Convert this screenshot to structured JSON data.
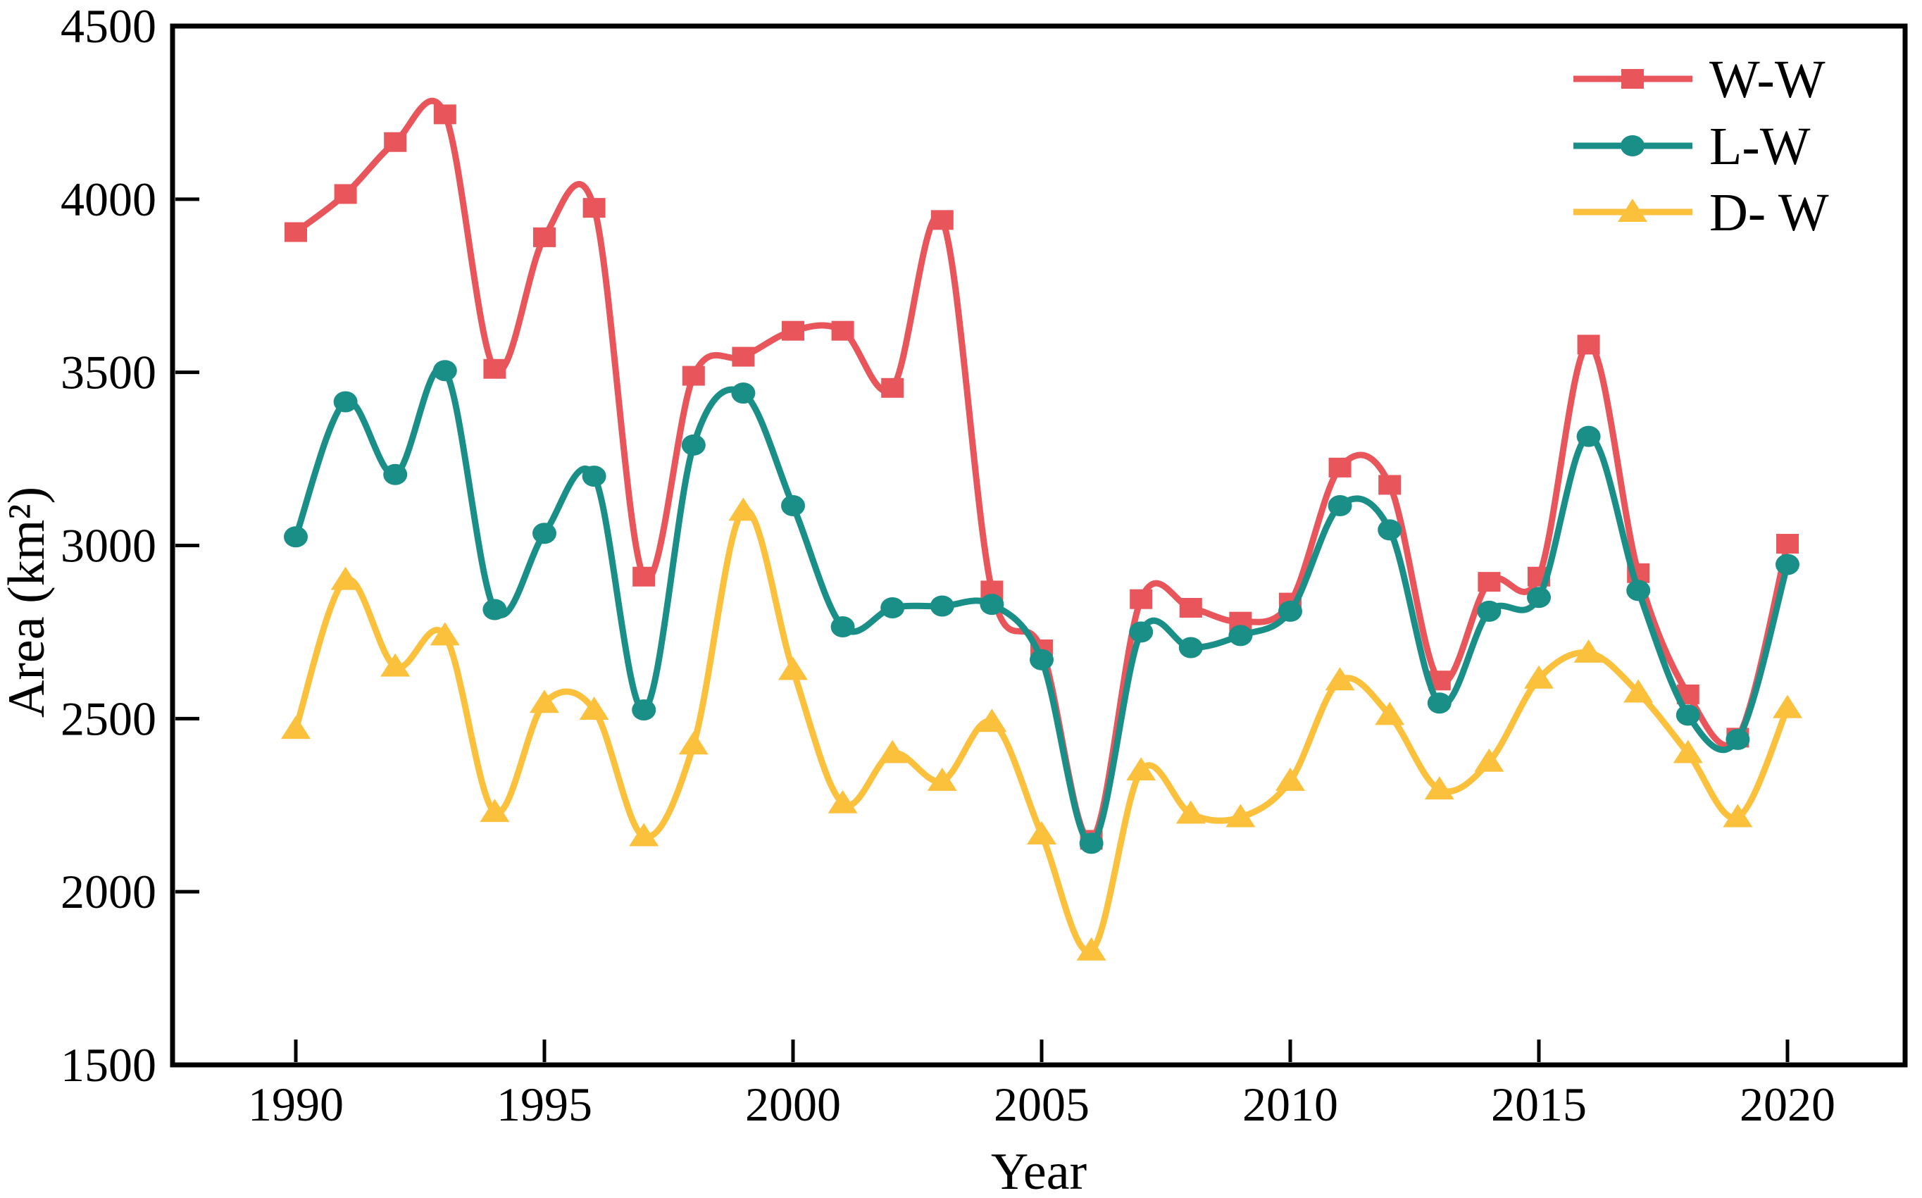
{
  "figure": {
    "background": "#ffffff"
  },
  "axes": {
    "x": {
      "label": "Year",
      "tick_years": [
        1990,
        1995,
        2000,
        2005,
        2010,
        2015,
        2020
      ],
      "tick_labels": [
        "1990",
        "1995",
        "2000",
        "2005",
        "2010",
        "2015",
        "2020"
      ]
    },
    "y": {
      "label": "Area（km²）",
      "tick_values": [
        1500,
        2000,
        2500,
        3000,
        3500,
        4000,
        4500
      ],
      "tick_labels": [
        "1500",
        "2000",
        "2500",
        "3000",
        "3500",
        "4000",
        "4500"
      ],
      "inner_tick_values": [
        2000,
        2500,
        3000,
        3500,
        4000
      ]
    }
  },
  "legend": {
    "items": [
      {
        "label": "W-W",
        "series": "W-W"
      },
      {
        "label": "L-W",
        "series": "L-W"
      },
      {
        "label": "D- W",
        "series": "D-W"
      }
    ]
  },
  "chart_data": {
    "type": "line",
    "curve": "smooth",
    "grid": false,
    "legend_position": "top-right",
    "title": "",
    "xlabel": "Year",
    "ylabel": "Area（km²）",
    "ylim": [
      1500,
      4500
    ],
    "xlim_years": [
      1987.5,
      2022.5
    ],
    "x": [
      1990,
      1991,
      1992,
      1993,
      1994,
      1995,
      1996,
      1997,
      1998,
      1999,
      2000,
      2001,
      2002,
      2003,
      2004,
      2005,
      2006,
      2007,
      2008,
      2009,
      2010,
      2011,
      2012,
      2013,
      2014,
      2015,
      2016,
      2017,
      2018,
      2019,
      2020
    ],
    "series": [
      {
        "name": "W-W",
        "marker": "square",
        "color": "#E8555A",
        "values": [
          3905,
          4015,
          4165,
          4245,
          3510,
          3890,
          3975,
          2910,
          3490,
          3545,
          3620,
          3620,
          3455,
          3940,
          2870,
          2700,
          2150,
          2845,
          2820,
          2780,
          2835,
          3225,
          3175,
          2610,
          2895,
          2910,
          3580,
          2920,
          2570,
          2445,
          3005
        ]
      },
      {
        "name": "L-W",
        "marker": "circle",
        "color": "#1A8F88",
        "values": [
          3025,
          3415,
          3205,
          3505,
          2815,
          3035,
          3200,
          2525,
          3290,
          3440,
          3115,
          2765,
          2820,
          2825,
          2830,
          2670,
          2140,
          2750,
          2705,
          2740,
          2810,
          3115,
          3045,
          2545,
          2810,
          2850,
          3315,
          2870,
          2510,
          2440,
          2945
        ]
      },
      {
        "name": "D-W",
        "marker": "triangle",
        "color": "#FBC13C",
        "values": [
          2470,
          2900,
          2650,
          2740,
          2230,
          2545,
          2525,
          2160,
          2425,
          3100,
          2640,
          2255,
          2400,
          2320,
          2490,
          2165,
          1830,
          2350,
          2225,
          2215,
          2320,
          2610,
          2510,
          2295,
          2375,
          2615,
          2690,
          2575,
          2400,
          2215,
          2530
        ]
      }
    ]
  }
}
